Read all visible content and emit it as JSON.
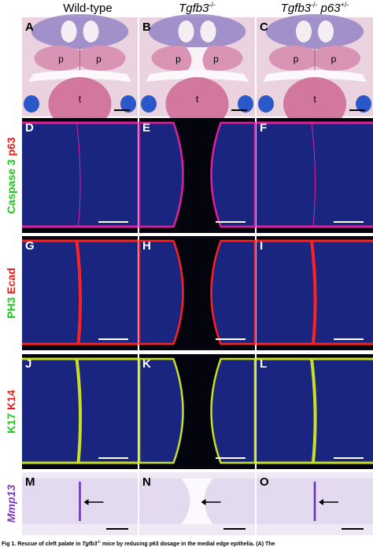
{
  "columns": [
    {
      "text": "Wild-type"
    },
    {
      "gene": "Tgfb3",
      "sup": "-/-"
    },
    {
      "gene": "Tgfb3",
      "sup": "-/-",
      "gene2": "p63",
      "sup2": "+/-"
    }
  ],
  "row_labels": [
    [
      "Caspase 3",
      "p63"
    ],
    [
      "PH3",
      "Ecad"
    ],
    [
      "K17",
      "K14"
    ],
    [
      "Mmp13"
    ]
  ],
  "panels": [
    "A",
    "B",
    "C",
    "D",
    "E",
    "F",
    "G",
    "H",
    "I",
    "J",
    "K",
    "L",
    "M",
    "N",
    "O"
  ],
  "tissue_labels": [
    "p",
    "p",
    "t"
  ],
  "caption": [
    "Fig 1. Rescue of cleft palate in ",
    "Tgfb3",
    "-/-",
    " mice by reducing p63 dosage in the medial edge epithelia. (A) The"
  ]
}
